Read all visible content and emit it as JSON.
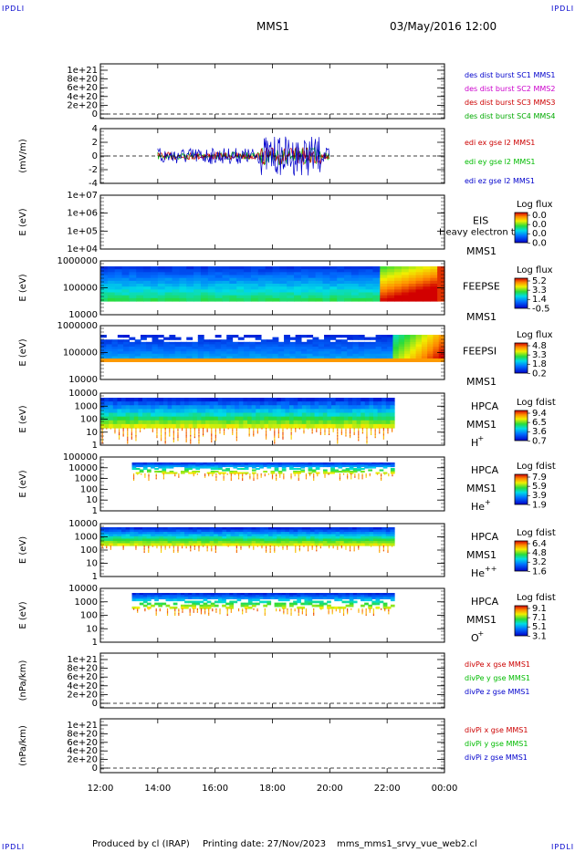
{
  "header": {
    "corner_label": "IPDLI",
    "mission": "MMS1",
    "date": "03/May/2016 12:00"
  },
  "footer": {
    "produced_by": "Produced by cl (IRAP)",
    "printing_date": "Printing date: 27/Nov/2023",
    "filename": "mms_mms1_srvy_vue_web2.cl"
  },
  "colors": {
    "mms1": "#0000cc",
    "mms2": "#cc00cc",
    "mms3": "#cc0000",
    "mms4": "#00aa00",
    "x": "#cc0000",
    "y": "#00bb00",
    "z": "#0000cc"
  },
  "chart_data": {
    "type": "multi-panel time series",
    "x_ticks": [
      "12:00",
      "14:00",
      "16:00",
      "18:00",
      "20:00",
      "22:00",
      "00:00"
    ],
    "panels": [
      {
        "id": "des-dist",
        "type": "line",
        "ylabel": "",
        "yticks": [
          "1e+21",
          "8e+20",
          "6e+20",
          "4e+20",
          "2e+20",
          "0"
        ],
        "legend": [
          {
            "text": "des dist burst SC1 MMS1",
            "color": "#0000cc"
          },
          {
            "text": "des dist burst SC2 MMS2",
            "color": "#cc00cc"
          },
          {
            "text": "des dist burst SC3 MMS3",
            "color": "#cc0000"
          },
          {
            "text": "des dist burst SC4 MMS4",
            "color": "#00aa00"
          }
        ]
      },
      {
        "id": "edi",
        "type": "line",
        "ylabel": "(mV/m)",
        "yticks": [
          "4",
          "2",
          "0",
          "-2",
          "-4"
        ],
        "ylim": [
          -5,
          5
        ],
        "time_range": [
          "14:00",
          "20:00"
        ],
        "legend": [
          {
            "text": "edi ex gse l2 MMS1",
            "color": "#cc0000"
          },
          {
            "text": "edi ey gse l2 MMS1",
            "color": "#00bb00"
          },
          {
            "text": "edi ez gse l2 MMS1",
            "color": "#0000cc"
          }
        ]
      },
      {
        "id": "eis",
        "type": "heatmap",
        "ylabel": "E (eV)",
        "yticks": [
          "1e+07",
          "1e+06",
          "1e+05",
          "1e+04"
        ],
        "instrument": "EIS",
        "spacecraft": "MMS1",
        "overlay_text": "Heavy electron to",
        "colorbar_title": "Log flux",
        "colorbar_ticks": [
          "0.0",
          "0.0",
          "0.0",
          "0.0"
        ]
      },
      {
        "id": "feeps-e",
        "type": "heatmap",
        "ylabel": "E (eV)",
        "yticks": [
          "1000000",
          "100000",
          "10000"
        ],
        "instrument": "FEEPSE",
        "spacecraft": "MMS1",
        "colorbar_title": "Log flux",
        "colorbar_ticks": [
          "5.2",
          "3.3",
          "1.4",
          "-0.5"
        ]
      },
      {
        "id": "feeps-i",
        "type": "heatmap",
        "ylabel": "E (eV)",
        "yticks": [
          "1000000",
          "100000",
          "10000"
        ],
        "instrument": "FEEPSI",
        "spacecraft": "MMS1",
        "colorbar_title": "Log flux",
        "colorbar_ticks": [
          "4.8",
          "3.3",
          "1.8",
          "0.2"
        ]
      },
      {
        "id": "hpca-h",
        "type": "heatmap",
        "ylabel": "E (eV)",
        "yticks": [
          "10000",
          "1000",
          "100",
          "10",
          "1"
        ],
        "instrument": "HPCA",
        "spacecraft": "MMS1",
        "species": "H",
        "species_sup": "+",
        "colorbar_title": "Log fdist",
        "colorbar_ticks": [
          "9.4",
          "6.5",
          "3.6",
          "0.7"
        ]
      },
      {
        "id": "hpca-he",
        "type": "heatmap",
        "ylabel": "E (eV)",
        "yticks": [
          "100000",
          "10000",
          "1000",
          "100",
          "10",
          "1"
        ],
        "instrument": "HPCA",
        "spacecraft": "MMS1",
        "species": "He",
        "species_sup": "+",
        "colorbar_title": "Log fdist",
        "colorbar_ticks": [
          "7.9",
          "5.9",
          "3.9",
          "1.9"
        ]
      },
      {
        "id": "hpca-he2",
        "type": "heatmap",
        "ylabel": "E (eV)",
        "yticks": [
          "10000",
          "1000",
          "100",
          "10",
          "1"
        ],
        "instrument": "HPCA",
        "spacecraft": "MMS1",
        "species": "He",
        "species_sup": "++",
        "colorbar_title": "Log fdist",
        "colorbar_ticks": [
          "6.4",
          "4.8",
          "3.2",
          "1.6"
        ]
      },
      {
        "id": "hpca-o",
        "type": "heatmap",
        "ylabel": "E (eV)",
        "yticks": [
          "10000",
          "1000",
          "100",
          "10",
          "1"
        ],
        "instrument": "HPCA",
        "spacecraft": "MMS1",
        "species": "O",
        "species_sup": "+",
        "colorbar_title": "Log fdist",
        "colorbar_ticks": [
          "9.1",
          "7.1",
          "5.1",
          "3.1"
        ]
      },
      {
        "id": "divpe",
        "type": "line",
        "ylabel": "(nPa/km)",
        "yticks": [
          "1e+21",
          "8e+20",
          "6e+20",
          "4e+20",
          "2e+20",
          "0"
        ],
        "legend": [
          {
            "text": "divPe x gse MMS1",
            "color": "#cc0000"
          },
          {
            "text": "divPe y gse MMS1",
            "color": "#00bb00"
          },
          {
            "text": "divPe z gse MMS1",
            "color": "#0000cc"
          }
        ]
      },
      {
        "id": "divpi",
        "type": "line",
        "ylabel": "(nPa/km)",
        "yticks": [
          "1e+21",
          "8e+20",
          "6e+20",
          "4e+20",
          "2e+20",
          "0"
        ],
        "legend": [
          {
            "text": "divPi x gse MMS1",
            "color": "#cc0000"
          },
          {
            "text": "divPi y gse MMS1",
            "color": "#00bb00"
          },
          {
            "text": "divPi z gse MMS1",
            "color": "#0000cc"
          }
        ]
      }
    ]
  }
}
